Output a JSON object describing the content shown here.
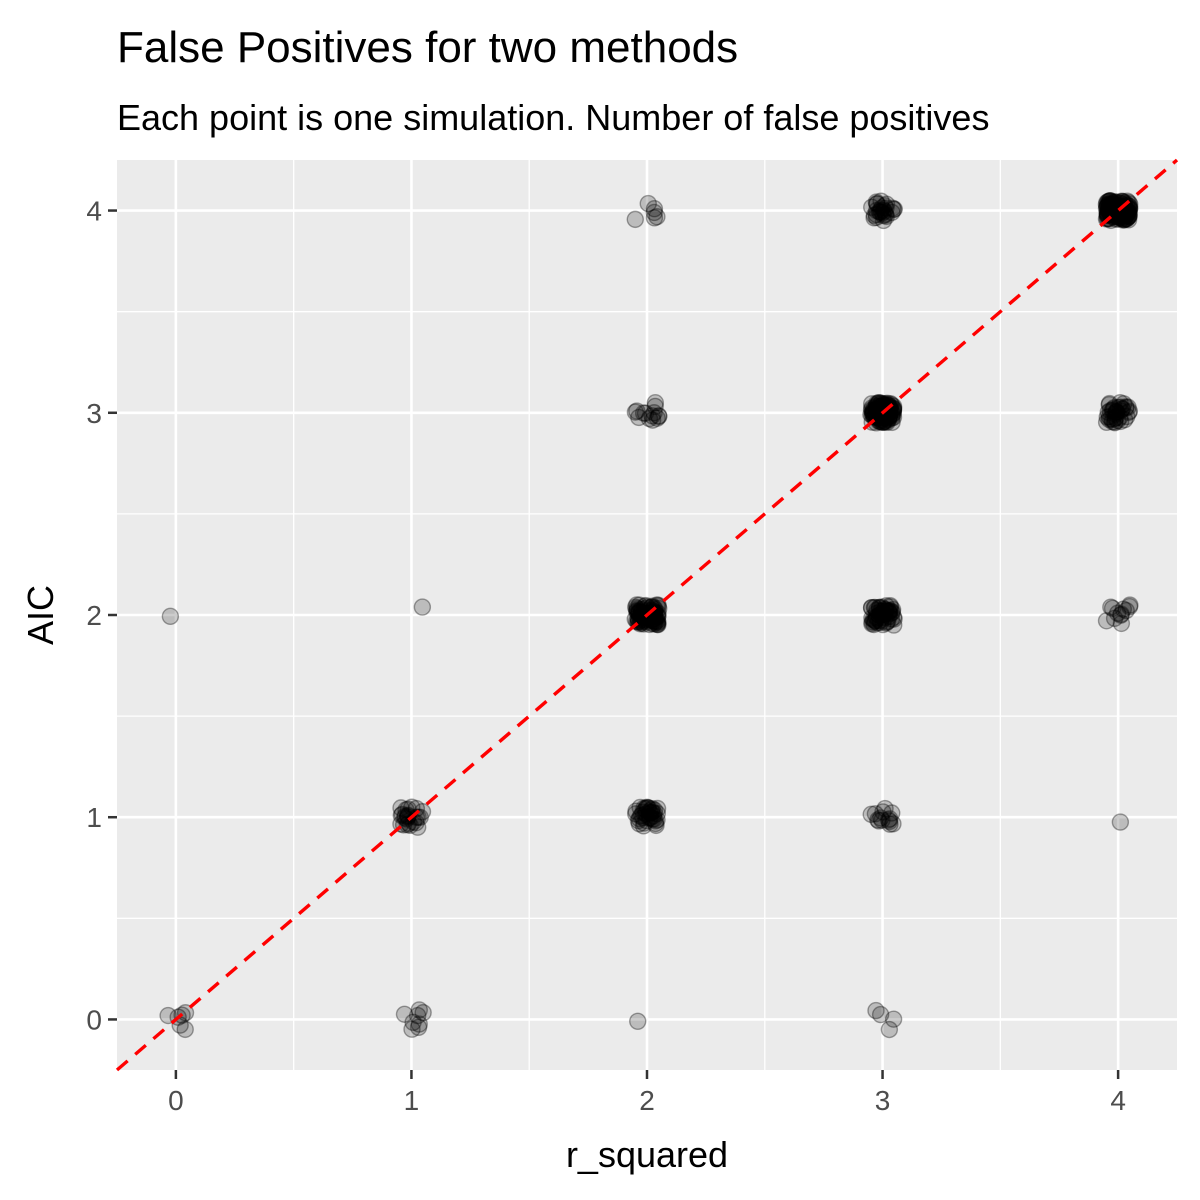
{
  "chart_data": {
    "type": "scatter",
    "title": "False Positives for two methods",
    "subtitle": "Each point is one simulation. Number of false positives",
    "xlabel": "r_squared",
    "ylabel": "AIC",
    "xlim": [
      -0.25,
      4.25
    ],
    "ylim": [
      -0.25,
      4.25
    ],
    "x_ticks": [
      0,
      1,
      2,
      3,
      4
    ],
    "y_ticks": [
      0,
      1,
      2,
      3,
      4
    ],
    "x_tick_labels": [
      "0",
      "1",
      "2",
      "3",
      "4"
    ],
    "y_tick_labels": [
      "0",
      "1",
      "2",
      "3",
      "4"
    ],
    "grid": true,
    "panel_background": "#ebebeb",
    "point_color": "#000000",
    "point_alpha": 0.2,
    "reference_line": {
      "slope": 1,
      "intercept": 0,
      "style": "dashed",
      "color": "#ff0000"
    },
    "clusters": [
      {
        "x": 0,
        "y": 0,
        "count": 6
      },
      {
        "x": 0,
        "y": 2,
        "count": 1
      },
      {
        "x": 1,
        "y": 0,
        "count": 8
      },
      {
        "x": 1,
        "y": 1,
        "count": 25
      },
      {
        "x": 1,
        "y": 2,
        "count": 1
      },
      {
        "x": 2,
        "y": 0,
        "count": 1
      },
      {
        "x": 2,
        "y": 1,
        "count": 40
      },
      {
        "x": 2,
        "y": 2,
        "count": 90
      },
      {
        "x": 2,
        "y": 3,
        "count": 14
      },
      {
        "x": 2,
        "y": 4,
        "count": 6
      },
      {
        "x": 3,
        "y": 0,
        "count": 4
      },
      {
        "x": 3,
        "y": 1,
        "count": 14
      },
      {
        "x": 3,
        "y": 2,
        "count": 60
      },
      {
        "x": 3,
        "y": 3,
        "count": 120
      },
      {
        "x": 3,
        "y": 4,
        "count": 30
      },
      {
        "x": 4,
        "y": 1,
        "count": 1
      },
      {
        "x": 4,
        "y": 2,
        "count": 12
      },
      {
        "x": 4,
        "y": 3,
        "count": 40
      },
      {
        "x": 4,
        "y": 4,
        "count": 150
      }
    ]
  }
}
